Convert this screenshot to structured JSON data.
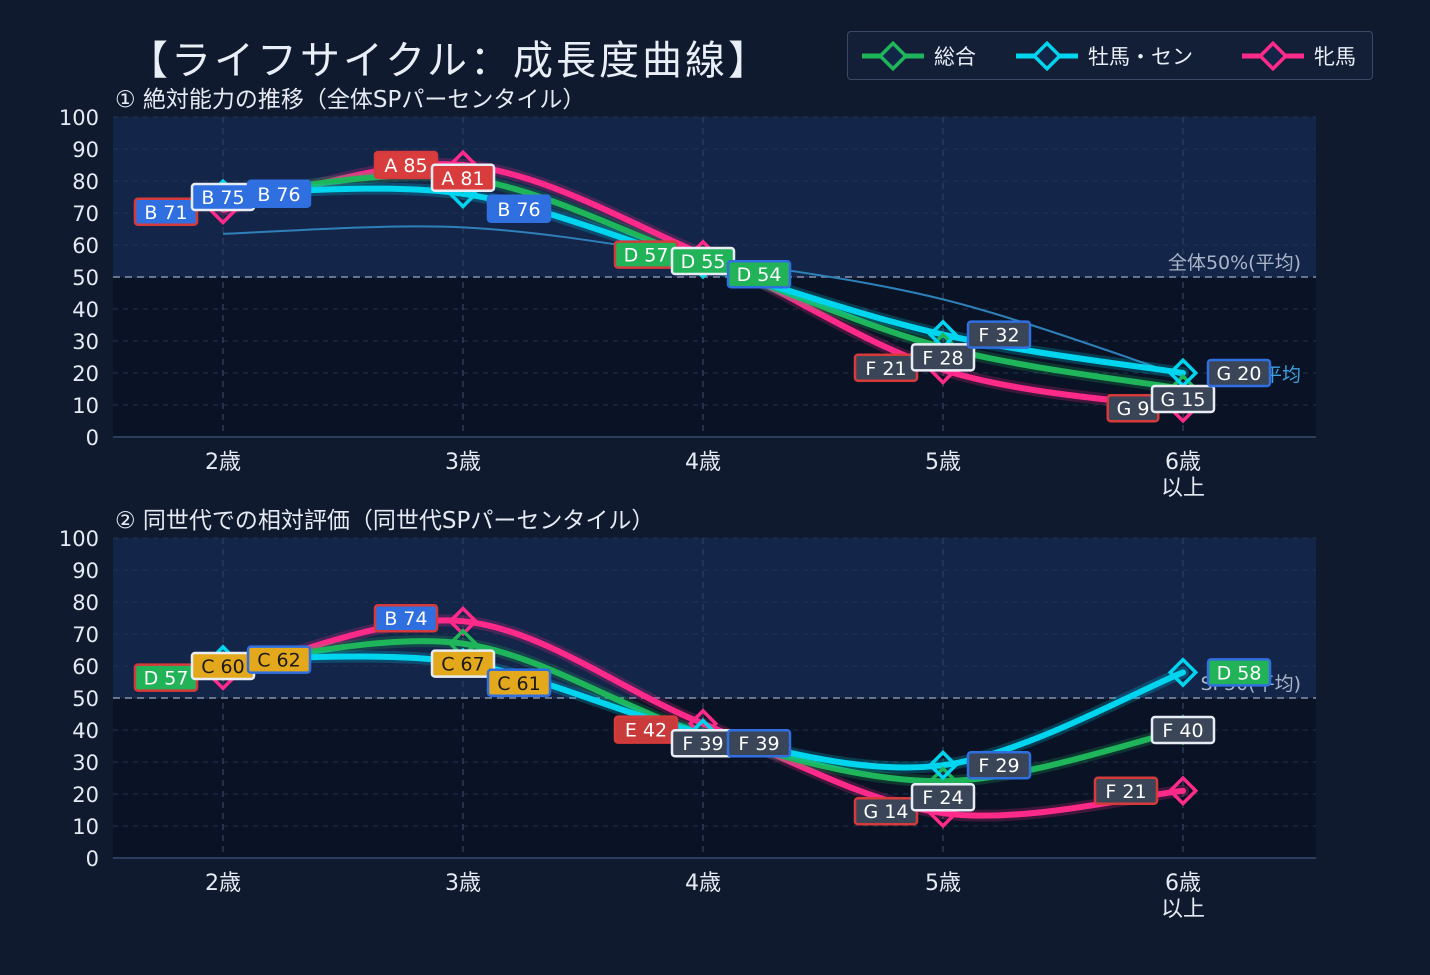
{
  "title": "【ライフサイクル：成長度曲線】",
  "legend": [
    {
      "name": "総合",
      "color": "#1fb55a"
    },
    {
      "name": "牡馬・セン",
      "color": "#00d5f0"
    },
    {
      "name": "牝馬",
      "color": "#ff2a8a"
    }
  ],
  "colors": {
    "background": "#101a2e",
    "plot_bg_upper": "#14254a",
    "plot_bg_lower": "#0a1325",
    "reference": "#2e80b8",
    "grade_A": "#d93c3c",
    "grade_B": "#2f6fe0",
    "grade_C": "#e3a81c",
    "grade_D": "#22b359",
    "grade_E": "#c93a3a",
    "grade_F": "#3b4558",
    "grade_G": "#3b4558"
  },
  "chart_data": [
    {
      "type": "line",
      "title": "① 絶対能力の推移（全体SPパーセンタイル）",
      "categories": [
        "2歳",
        "3歳",
        "4歳",
        "5歳",
        "6歳\n以上"
      ],
      "ylim": [
        0,
        100
      ],
      "yticks": [
        0,
        10,
        20,
        30,
        40,
        50,
        60,
        70,
        80,
        90,
        100
      ],
      "grid": true,
      "midline": {
        "value": 50,
        "label": "全体50%(平均)"
      },
      "series": [
        {
          "name": "総合",
          "values": [
            75,
            81,
            55,
            28,
            15
          ],
          "labels": [
            "B 75",
            "A 81",
            "D 55",
            "F 28",
            "G 15"
          ]
        },
        {
          "name": "牡馬・セン",
          "values": [
            76,
            76,
            54,
            32,
            20
          ],
          "labels": [
            "B 76",
            "B 76",
            "D 54",
            "F 32",
            "G 20"
          ]
        },
        {
          "name": "牝馬",
          "values": [
            71,
            85,
            57,
            21,
            9
          ],
          "labels": [
            "B 71",
            "A 85",
            "D 57",
            "F 21",
            "G 9"
          ]
        }
      ],
      "reference_line": {
        "values": [
          63.5,
          65.5,
          56,
          43,
          19
        ],
        "tail_label": "平均"
      }
    },
    {
      "type": "line",
      "title": "② 同世代での相対評価（同世代SPパーセンタイル）",
      "categories": [
        "2歳",
        "3歳",
        "4歳",
        "5歳",
        "6歳\n以上"
      ],
      "ylim": [
        0,
        100
      ],
      "yticks": [
        0,
        10,
        20,
        30,
        40,
        50,
        60,
        70,
        80,
        90,
        100
      ],
      "grid": true,
      "midline": {
        "value": 50,
        "label": "SP50(平均)"
      },
      "series": [
        {
          "name": "総合",
          "values": [
            60,
            67,
            39,
            24,
            40
          ],
          "labels": [
            "C 60",
            "C 67",
            "F 39",
            "F 24",
            "F 40"
          ]
        },
        {
          "name": "牡馬・セン",
          "values": [
            62,
            61,
            39,
            29,
            58
          ],
          "labels": [
            "C 62",
            "C 61",
            "F 39",
            "F 29",
            "D 58"
          ]
        },
        {
          "name": "牝馬",
          "values": [
            57,
            74,
            42,
            14,
            21
          ],
          "labels": [
            "D 57",
            "B 74",
            "E 42",
            "G 14",
            "F 21"
          ]
        }
      ]
    }
  ]
}
